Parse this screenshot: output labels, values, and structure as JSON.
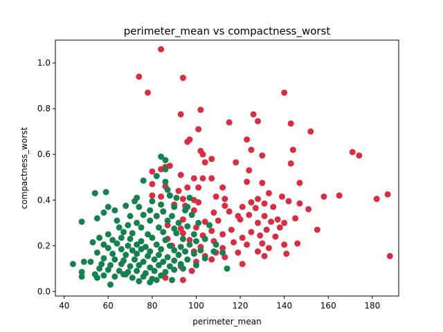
{
  "chart_data": {
    "type": "scatter",
    "title": "perimeter_mean vs compactness_worst",
    "xlabel": "perimeter_mean",
    "ylabel": "compactness_worst",
    "xlim": [
      36,
      192
    ],
    "ylim": [
      -0.02,
      1.1
    ],
    "xticks": [
      40,
      60,
      80,
      100,
      120,
      140,
      160,
      180
    ],
    "yticks": [
      0.0,
      0.2,
      0.4,
      0.6,
      0.8,
      1.0
    ],
    "grid": false,
    "legend": "none",
    "series": [
      {
        "color": "#d62e42",
        "points": [
          [
            84,
            1.06
          ],
          [
            74,
            0.94
          ],
          [
            94,
            0.935
          ],
          [
            78,
            0.87
          ],
          [
            140,
            0.87
          ],
          [
            102,
            0.795
          ],
          [
            93,
            0.775
          ],
          [
            126,
            0.775
          ],
          [
            115,
            0.74
          ],
          [
            128,
            0.745
          ],
          [
            143,
            0.735
          ],
          [
            101,
            0.71
          ],
          [
            152,
            0.7
          ],
          [
            97,
            0.665
          ],
          [
            96,
            0.655
          ],
          [
            123,
            0.665
          ],
          [
            102,
            0.615
          ],
          [
            103,
            0.6
          ],
          [
            107,
            0.58
          ],
          [
            125,
            0.62
          ],
          [
            144,
            0.62
          ],
          [
            171,
            0.61
          ],
          [
            174,
            0.595
          ],
          [
            130,
            0.595
          ],
          [
            104,
            0.565
          ],
          [
            118,
            0.565
          ],
          [
            88,
            0.55
          ],
          [
            84,
            0.535
          ],
          [
            86,
            0.545
          ],
          [
            80,
            0.525
          ],
          [
            124,
            0.53
          ],
          [
            143,
            0.56
          ],
          [
            93,
            0.51
          ],
          [
            99,
            0.495
          ],
          [
            103,
            0.495
          ],
          [
            107,
            0.495
          ],
          [
            123,
            0.48
          ],
          [
            130,
            0.475
          ],
          [
            112,
            0.455
          ],
          [
            147,
            0.475
          ],
          [
            80,
            0.47
          ],
          [
            86,
            0.46
          ],
          [
            96,
            0.455
          ],
          [
            92,
            0.44
          ],
          [
            101,
            0.455
          ],
          [
            133,
            0.43
          ],
          [
            88,
            0.42
          ],
          [
            84,
            0.415
          ],
          [
            80,
            0.42
          ],
          [
            94,
            0.405
          ],
          [
            99,
            0.4
          ],
          [
            109,
            0.415
          ],
          [
            113,
            0.405
          ],
          [
            125,
            0.39
          ],
          [
            128,
            0.405
          ],
          [
            131,
            0.385
          ],
          [
            139,
            0.415
          ],
          [
            142,
            0.395
          ],
          [
            158,
            0.415
          ],
          [
            165,
            0.42
          ],
          [
            182,
            0.405
          ],
          [
            187,
            0.425
          ],
          [
            90,
            0.38
          ],
          [
            95,
            0.375
          ],
          [
            101,
            0.39
          ],
          [
            113,
            0.375
          ],
          [
            121,
            0.37
          ],
          [
            127,
            0.365
          ],
          [
            135,
            0.37
          ],
          [
            147,
            0.385
          ],
          [
            151,
            0.36
          ],
          [
            85,
            0.35
          ],
          [
            99,
            0.355
          ],
          [
            108,
            0.345
          ],
          [
            115,
            0.35
          ],
          [
            119,
            0.33
          ],
          [
            124,
            0.335
          ],
          [
            131,
            0.33
          ],
          [
            137,
            0.315
          ],
          [
            145,
            0.32
          ],
          [
            82,
            0.33
          ],
          [
            94,
            0.315
          ],
          [
            104,
            0.305
          ],
          [
            110,
            0.31
          ],
          [
            120,
            0.315
          ],
          [
            128,
            0.3
          ],
          [
            134,
            0.305
          ],
          [
            140,
            0.3
          ],
          [
            87,
            0.29
          ],
          [
            93,
            0.275
          ],
          [
            100,
            0.28
          ],
          [
            107,
            0.265
          ],
          [
            116,
            0.27
          ],
          [
            125,
            0.26
          ],
          [
            132,
            0.27
          ],
          [
            138,
            0.28
          ],
          [
            155,
            0.27
          ],
          [
            94,
            0.255
          ],
          [
            103,
            0.245
          ],
          [
            112,
            0.25
          ],
          [
            121,
            0.235
          ],
          [
            129,
            0.245
          ],
          [
            136,
            0.24
          ],
          [
            87,
            0.23
          ],
          [
            97,
            0.225
          ],
          [
            108,
            0.22
          ],
          [
            117,
            0.215
          ],
          [
            123,
            0.205
          ],
          [
            130,
            0.21
          ],
          [
            140,
            0.205
          ],
          [
            146,
            0.21
          ],
          [
            89,
            0.2
          ],
          [
            102,
            0.195
          ],
          [
            112,
            0.19
          ],
          [
            133,
            0.19
          ],
          [
            99,
            0.175
          ],
          [
            109,
            0.17
          ],
          [
            119,
            0.17
          ],
          [
            128,
            0.175
          ],
          [
            141,
            0.165
          ],
          [
            104,
            0.155
          ],
          [
            113,
            0.15
          ],
          [
            131,
            0.155
          ],
          [
            188,
            0.155
          ],
          [
            100,
            0.13
          ],
          [
            121,
            0.12
          ],
          [
            93,
            0.11
          ],
          [
            98,
            0.09
          ],
          [
            86,
            0.06
          ],
          [
            94,
            0.05
          ],
          [
            107,
            0.14
          ]
        ]
      },
      {
        "color": "#17804f",
        "points": [
          [
            84,
            0.59
          ],
          [
            86,
            0.575
          ],
          [
            86,
            0.535
          ],
          [
            82,
            0.505
          ],
          [
            76,
            0.485
          ],
          [
            86,
            0.48
          ],
          [
            87,
            0.445
          ],
          [
            54,
            0.43
          ],
          [
            59,
            0.435
          ],
          [
            73,
            0.41
          ],
          [
            72,
            0.395
          ],
          [
            80,
            0.395
          ],
          [
            88,
            0.42
          ],
          [
            91,
            0.41
          ],
          [
            97,
            0.41
          ],
          [
            68,
            0.375
          ],
          [
            74,
            0.37
          ],
          [
            84,
            0.38
          ],
          [
            90,
            0.37
          ],
          [
            96,
            0.37
          ],
          [
            60,
            0.37
          ],
          [
            63,
            0.355
          ],
          [
            79,
            0.355
          ],
          [
            85,
            0.35
          ],
          [
            95,
            0.355
          ],
          [
            58,
            0.345
          ],
          [
            70,
            0.33
          ],
          [
            76,
            0.335
          ],
          [
            82,
            0.33
          ],
          [
            89,
            0.33
          ],
          [
            98,
            0.335
          ],
          [
            48,
            0.305
          ],
          [
            55,
            0.32
          ],
          [
            64,
            0.31
          ],
          [
            73,
            0.3
          ],
          [
            79,
            0.31
          ],
          [
            87,
            0.31
          ],
          [
            92,
            0.3
          ],
          [
            101,
            0.3
          ],
          [
            65,
            0.28
          ],
          [
            69,
            0.29
          ],
          [
            75,
            0.28
          ],
          [
            83,
            0.28
          ],
          [
            90,
            0.275
          ],
          [
            96,
            0.285
          ],
          [
            106,
            0.29
          ],
          [
            60,
            0.25
          ],
          [
            67,
            0.26
          ],
          [
            71,
            0.255
          ],
          [
            78,
            0.25
          ],
          [
            85,
            0.26
          ],
          [
            91,
            0.255
          ],
          [
            99,
            0.25
          ],
          [
            56,
            0.235
          ],
          [
            62,
            0.225
          ],
          [
            66,
            0.235
          ],
          [
            70,
            0.23
          ],
          [
            75,
            0.22
          ],
          [
            80,
            0.235
          ],
          [
            86,
            0.225
          ],
          [
            94,
            0.23
          ],
          [
            100,
            0.22
          ],
          [
            104,
            0.23
          ],
          [
            53,
            0.215
          ],
          [
            58,
            0.205
          ],
          [
            64,
            0.21
          ],
          [
            69,
            0.2
          ],
          [
            73,
            0.205
          ],
          [
            77,
            0.195
          ],
          [
            82,
            0.205
          ],
          [
            88,
            0.2
          ],
          [
            93,
            0.195
          ],
          [
            97,
            0.205
          ],
          [
            109,
            0.205
          ],
          [
            60,
            0.19
          ],
          [
            66,
            0.185
          ],
          [
            71,
            0.18
          ],
          [
            75,
            0.185
          ],
          [
            79,
            0.175
          ],
          [
            84,
            0.185
          ],
          [
            90,
            0.18
          ],
          [
            95,
            0.175
          ],
          [
            102,
            0.18
          ],
          [
            55,
            0.17
          ],
          [
            62,
            0.165
          ],
          [
            68,
            0.16
          ],
          [
            73,
            0.165
          ],
          [
            78,
            0.155
          ],
          [
            83,
            0.16
          ],
          [
            87,
            0.15
          ],
          [
            92,
            0.16
          ],
          [
            99,
            0.165
          ],
          [
            108,
            0.175
          ],
          [
            112,
            0.17
          ],
          [
            58,
            0.145
          ],
          [
            63,
            0.14
          ],
          [
            67,
            0.135
          ],
          [
            72,
            0.14
          ],
          [
            76,
            0.13
          ],
          [
            81,
            0.14
          ],
          [
            85,
            0.13
          ],
          [
            90,
            0.135
          ],
          [
            96,
            0.14
          ],
          [
            104,
            0.145
          ],
          [
            52,
            0.13
          ],
          [
            57,
            0.12
          ],
          [
            61,
            0.115
          ],
          [
            66,
            0.12
          ],
          [
            70,
            0.11
          ],
          [
            74,
            0.115
          ],
          [
            79,
            0.105
          ],
          [
            83,
            0.115
          ],
          [
            88,
            0.11
          ],
          [
            93,
            0.12
          ],
          [
            100,
            0.115
          ],
          [
            44,
            0.12
          ],
          [
            49,
            0.13
          ],
          [
            56,
            0.1
          ],
          [
            60,
            0.095
          ],
          [
            65,
            0.09
          ],
          [
            69,
            0.085
          ],
          [
            73,
            0.09
          ],
          [
            77,
            0.08
          ],
          [
            81,
            0.09
          ],
          [
            86,
            0.085
          ],
          [
            90,
            0.095
          ],
          [
            94,
            0.1
          ],
          [
            114,
            0.1
          ],
          [
            48,
            0.085
          ],
          [
            54,
            0.075
          ],
          [
            58,
            0.07
          ],
          [
            63,
            0.065
          ],
          [
            67,
            0.075
          ],
          [
            71,
            0.06
          ],
          [
            76,
            0.065
          ],
          [
            80,
            0.055
          ],
          [
            84,
            0.07
          ],
          [
            89,
            0.05
          ],
          [
            48,
            0.065
          ],
          [
            55,
            0.06
          ],
          [
            61,
            0.03
          ],
          [
            68,
            0.075
          ],
          [
            74,
            0.045
          ],
          [
            79,
            0.04
          ],
          [
            82,
            0.05
          ]
        ]
      }
    ]
  }
}
